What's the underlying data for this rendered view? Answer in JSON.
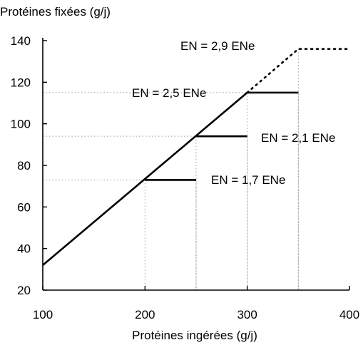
{
  "chart_data": {
    "type": "line",
    "title": "",
    "ylabel": "Protéines fixées (g/j)",
    "xlabel": "Protéines ingérées (g/j)",
    "xlim": [
      100,
      400
    ],
    "ylim": [
      20,
      140
    ],
    "x_ticks": [
      100,
      200,
      300,
      400
    ],
    "y_ticks": [
      20,
      40,
      60,
      80,
      100,
      120,
      140
    ],
    "grid": false,
    "series": [
      {
        "name": "",
        "style": "solid",
        "points": [
          [
            100,
            32
          ],
          [
            300,
            115
          ]
        ]
      },
      {
        "name": "",
        "style": "dotted",
        "points": [
          [
            300,
            115
          ],
          [
            350,
            136
          ],
          [
            400,
            136
          ]
        ]
      }
    ],
    "plateaus": [
      {
        "label": "EN = 1,7 ENe",
        "x_start": 200,
        "x_end": 250,
        "y": 73
      },
      {
        "label": "EN = 2,1 ENe",
        "x_start": 250,
        "x_end": 300,
        "y": 94
      },
      {
        "label": "EN = 2,5 ENe",
        "x_start": 300,
        "x_end": 350,
        "y": 115
      },
      {
        "label": "EN = 2,9 ENe",
        "x_start": 350,
        "x_end": 400,
        "y": 136
      }
    ]
  }
}
